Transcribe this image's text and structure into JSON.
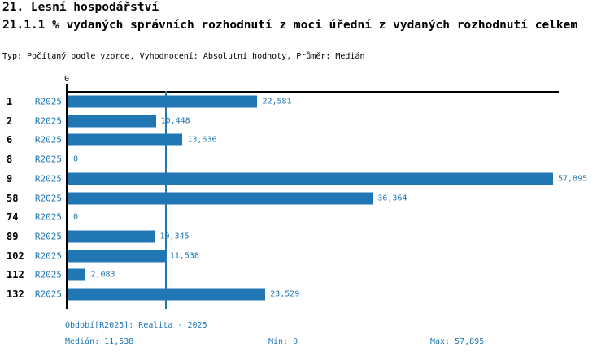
{
  "header": {
    "title": "21. Lesní hospodářství",
    "subtitle": "21.1.1 % vydaných správních rozhodnutí z moci úřední z vydaných rozhodnutí celkem",
    "meta": "Typ: Počítaný podle vzorce, Vyhodnocení: Absolutní hodnoty, Průměr: Medián"
  },
  "chart_data": {
    "type": "bar",
    "orientation": "horizontal",
    "title": "21.1.1 % vydaných správních rozhodnutí z moci úřední z vydaných rozhodnutí celkem",
    "categories": [
      "1",
      "2",
      "6",
      "8",
      "9",
      "58",
      "74",
      "89",
      "102",
      "112",
      "132"
    ],
    "series": [
      {
        "name": "R2025",
        "values": [
          22581,
          10448,
          13636,
          0,
          57895,
          36364,
          0,
          10345,
          11538,
          2083,
          23529
        ]
      }
    ],
    "value_labels": [
      "22,581",
      "10,448",
      "13,636",
      "0",
      "57,895",
      "36,364",
      "0",
      "10,345",
      "11,538",
      "2,083",
      "23,529"
    ],
    "xlim": [
      0,
      57895
    ],
    "x_tick_labels": [
      "0"
    ],
    "median_value": 11538,
    "grid": false,
    "legend": "none",
    "bar_color": "#2077b4"
  },
  "footer": {
    "period": "Období[R2025]: Realita - 2025",
    "median": "Medián: 11,538",
    "min": "Min: 0",
    "max": "Max: 57,895"
  },
  "colors": {
    "accent": "#2077b4",
    "axis": "#000000",
    "background": "#ffffff"
  }
}
